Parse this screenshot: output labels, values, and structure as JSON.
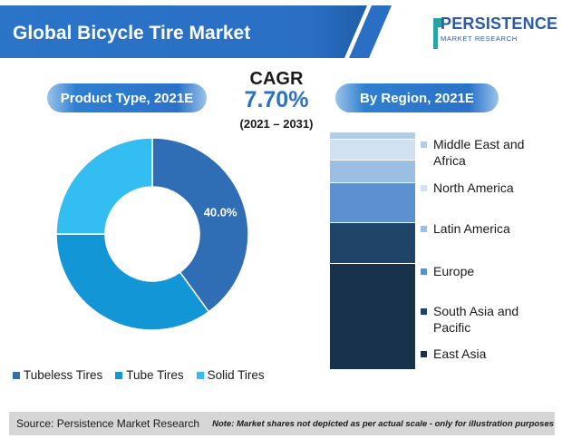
{
  "header": {
    "title": "Global Bicycle Tire Market",
    "logo_main": "PERSISTENCE",
    "logo_sub": "MARKET RESEARCH"
  },
  "cagr": {
    "label": "CAGR",
    "value": "7.70%",
    "period": "(2021 – 2031)"
  },
  "colors": {
    "banner": "#2a6fc4",
    "tubeless": "#2f6db5",
    "tube": "#1296d6",
    "solid": "#33bdf0",
    "footer_bg": "#d6d6d6"
  },
  "chart_data": [
    {
      "type": "pie",
      "title": "Product Type, 2021E",
      "categories": [
        "Tubeless Tires",
        "Tube Tires",
        "Solid Tires"
      ],
      "values": [
        40.0,
        35.0,
        25.0
      ],
      "data_labels": [
        "40.0%",
        "",
        ""
      ],
      "colors": [
        "#2f6db5",
        "#1296d6",
        "#33bdf0"
      ],
      "legend_position": "bottom"
    },
    {
      "type": "bar",
      "stacked": true,
      "title": "By Region, 2021E",
      "categories": [
        "East Asia",
        "South Asia and Pacific",
        "Europe",
        "Latin America",
        "North America",
        "Middle East and Africa"
      ],
      "values": [
        44.5,
        17.5,
        16.5,
        9.5,
        9.0,
        3.0
      ],
      "colors": [
        "#17324a",
        "#1f4468",
        "#5b91cf",
        "#9bbfe2",
        "#d0e2f2",
        "#b3cde8"
      ],
      "legend_position": "right"
    }
  ],
  "footer": {
    "source": "Source: Persistence Market Research",
    "note": "Note: Market shares not depicted as per actual scale - only for illustration purposes"
  }
}
